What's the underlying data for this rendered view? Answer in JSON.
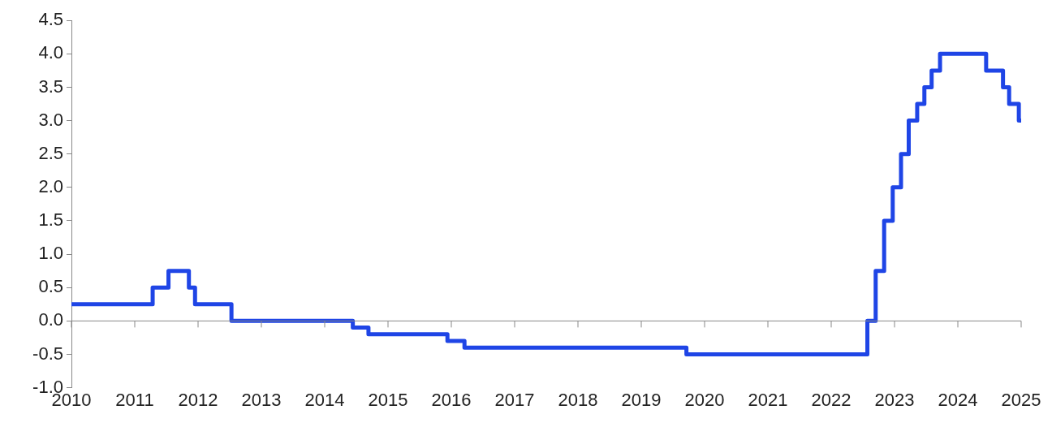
{
  "chart_data": {
    "type": "step",
    "color": "#1f45e6",
    "marker": "none",
    "x": [
      "2010-01-01",
      "2011-04-13",
      "2011-07-13",
      "2011-11-09",
      "2011-12-14",
      "2012-07-11",
      "2014-06-11",
      "2014-09-10",
      "2015-12-09",
      "2016-03-16",
      "2019-09-18",
      "2022-07-27",
      "2022-09-14",
      "2022-11-02",
      "2022-12-21",
      "2023-02-08",
      "2023-03-22",
      "2023-05-10",
      "2023-06-21",
      "2023-08-02",
      "2023-09-20",
      "2024-06-12",
      "2024-09-18",
      "2024-10-23",
      "2024-12-18",
      "2025-01-01"
    ],
    "values": [
      0.25,
      0.5,
      0.75,
      0.5,
      0.25,
      0,
      -0.1,
      -0.2,
      -0.3,
      -0.4,
      -0.5,
      0,
      0.75,
      1.5,
      2,
      2.5,
      3,
      3.25,
      3.5,
      3.75,
      4,
      3.75,
      3.5,
      3.25,
      3,
      3
    ],
    "xlim": [
      "2010",
      "2025"
    ],
    "xticks": [
      "2010",
      "2011",
      "2012",
      "2013",
      "2014",
      "2015",
      "2016",
      "2017",
      "2018",
      "2019",
      "2020",
      "2021",
      "2022",
      "2023",
      "2024",
      "2025"
    ],
    "ylim": [
      -1,
      4.5
    ],
    "yticks": [
      {
        "value": -1,
        "label": "-1.0"
      },
      {
        "value": -0.5,
        "label": "-0.5"
      },
      {
        "value": 0,
        "label": "0.0"
      },
      {
        "value": 0.5,
        "label": "0.5"
      },
      {
        "value": 1,
        "label": "1.0"
      },
      {
        "value": 1.5,
        "label": "1.5"
      },
      {
        "value": 2,
        "label": "2.0"
      },
      {
        "value": 2.5,
        "label": "2.5"
      },
      {
        "value": 3,
        "label": "3.0"
      },
      {
        "value": 3.5,
        "label": "3.5"
      },
      {
        "value": 4,
        "label": "4.0"
      },
      {
        "value": 4.5,
        "label": "4.5"
      }
    ]
  }
}
